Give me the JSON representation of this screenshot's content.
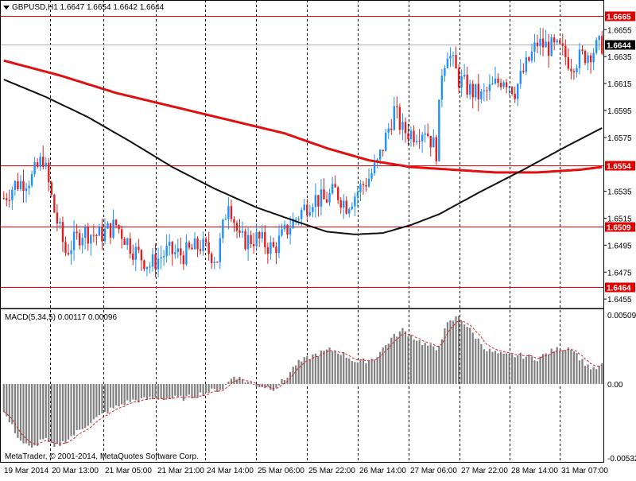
{
  "header": {
    "symbol": "GBPUSD,H1",
    "open": "1.6647",
    "high": "1.6654",
    "low": "1.6642",
    "close": "1.6644"
  },
  "indicator": {
    "label": "MACD(5,34,5) 0.00117 0.00096",
    "scale_top": "0.00509",
    "scale_mid": "0.00",
    "scale_bottom": "-0.00532"
  },
  "copyright": "MetaTrader, © 2001-2014, MetaQuotes Software Corp.",
  "colors": {
    "bull": "#1e90ff",
    "bear": "#e02020",
    "ma_red": "#e01010",
    "ma_black": "#111111",
    "level_line": "#e00000",
    "histogram": "#808080",
    "signal": "#e02020"
  },
  "chart_data": {
    "type": "candlestick",
    "symbol": "GBPUSD",
    "timeframe": "H1",
    "price_axis_ticks": [
      "1.6655",
      "1.6635",
      "1.6615",
      "1.6595",
      "1.6575",
      "1.6535",
      "1.6515",
      "1.6495",
      "1.6475",
      "1.6455"
    ],
    "time_axis_labels": [
      "19 Mar 2014",
      "20 Mar 13:00",
      "21 Mar 05:00",
      "21 Mar 21:00",
      "24 Mar 14:00",
      "25 Mar 06:00",
      "25 Mar 22:00",
      "26 Mar 14:00",
      "27 Mar 06:00",
      "27 Mar 22:00",
      "28 Mar 14:00",
      "31 Mar 07:00"
    ],
    "horizontal_levels": [
      {
        "value": 1.6665,
        "label": "1.6665"
      },
      {
        "value": 1.6554,
        "label": "1.6554"
      },
      {
        "value": 1.6509,
        "label": "1.6509"
      },
      {
        "value": 1.6464,
        "label": "1.6464"
      }
    ],
    "current_price": {
      "value": 1.6644,
      "label": "1.6644"
    },
    "price_range": [
      1.6448,
      1.6677
    ],
    "anchors": [
      [
        0,
        1.653
      ],
      [
        4,
        1.654
      ],
      [
        10,
        1.6545
      ],
      [
        14,
        1.656
      ],
      [
        18,
        1.652
      ],
      [
        22,
        1.649
      ],
      [
        28,
        1.6505
      ],
      [
        34,
        1.6502
      ],
      [
        40,
        1.651
      ],
      [
        46,
        1.6492
      ],
      [
        52,
        1.648
      ],
      [
        58,
        1.649
      ],
      [
        64,
        1.6488
      ],
      [
        70,
        1.6495
      ],
      [
        76,
        1.6485
      ],
      [
        80,
        1.653
      ],
      [
        84,
        1.6498
      ],
      [
        90,
        1.65
      ],
      [
        96,
        1.6492
      ],
      [
        102,
        1.651
      ],
      [
        106,
        1.652
      ],
      [
        110,
        1.653
      ],
      [
        114,
        1.6528
      ],
      [
        118,
        1.6535
      ],
      [
        122,
        1.6525
      ],
      [
        126,
        1.6535
      ],
      [
        130,
        1.6545
      ],
      [
        133,
        1.6555
      ],
      [
        136,
        1.6575
      ],
      [
        139,
        1.6595
      ],
      [
        142,
        1.658
      ],
      [
        146,
        1.6578
      ],
      [
        150,
        1.6582
      ],
      [
        154,
        1.6565
      ],
      [
        156,
        1.6625
      ],
      [
        158,
        1.664
      ],
      [
        162,
        1.6618
      ],
      [
        166,
        1.661
      ],
      [
        170,
        1.6605
      ],
      [
        174,
        1.6612
      ],
      [
        178,
        1.662
      ],
      [
        182,
        1.661
      ],
      [
        186,
        1.6628
      ],
      [
        190,
        1.6645
      ],
      [
        194,
        1.6642
      ],
      [
        198,
        1.664
      ],
      [
        202,
        1.663
      ],
      [
        206,
        1.6635
      ],
      [
        210,
        1.664
      ],
      [
        213,
        1.6644
      ]
    ],
    "moving_averages": [
      {
        "name": "",
        "color": "#e01010",
        "points": [
          [
            0,
            1.6632
          ],
          [
            20,
            1.6621
          ],
          [
            40,
            1.6608
          ],
          [
            60,
            1.6598
          ],
          [
            80,
            1.6588
          ],
          [
            100,
            1.6578
          ],
          [
            115,
            1.6567
          ],
          [
            130,
            1.6558
          ],
          [
            145,
            1.6553
          ],
          [
            160,
            1.6551
          ],
          [
            175,
            1.6549
          ],
          [
            190,
            1.6549
          ],
          [
            205,
            1.6551
          ],
          [
            213,
            1.6553
          ]
        ]
      },
      {
        "name": "",
        "color": "#111111",
        "points": [
          [
            0,
            1.6618
          ],
          [
            15,
            1.6605
          ],
          [
            30,
            1.659
          ],
          [
            45,
            1.6572
          ],
          [
            60,
            1.6553
          ],
          [
            75,
            1.6537
          ],
          [
            90,
            1.6523
          ],
          [
            105,
            1.6512
          ],
          [
            115,
            1.6505
          ],
          [
            125,
            1.6503
          ],
          [
            135,
            1.6504
          ],
          [
            145,
            1.651
          ],
          [
            155,
            1.6518
          ],
          [
            170,
            1.6535
          ],
          [
            185,
            1.6551
          ],
          [
            200,
            1.6568
          ],
          [
            213,
            1.6582
          ]
        ]
      }
    ],
    "macd": {
      "params": "5,34,5",
      "main": 0.00117,
      "signal": 0.00096,
      "range": [
        -0.00532,
        0.00509
      ],
      "hist_anchors": [
        [
          0,
          -0.002
        ],
        [
          6,
          -0.004
        ],
        [
          10,
          -0.0046
        ],
        [
          14,
          -0.0038
        ],
        [
          18,
          -0.0045
        ],
        [
          22,
          -0.004
        ],
        [
          30,
          -0.0028
        ],
        [
          38,
          -0.0018
        ],
        [
          45,
          -0.0012
        ],
        [
          55,
          -0.001
        ],
        [
          65,
          -0.001
        ],
        [
          72,
          -0.0006
        ],
        [
          78,
          -0.0003
        ],
        [
          82,
          0.0006
        ],
        [
          86,
          0.0002
        ],
        [
          90,
          -0.0001
        ],
        [
          96,
          -0.0003
        ],
        [
          100,
          0.0003
        ],
        [
          104,
          0.0014
        ],
        [
          110,
          0.002
        ],
        [
          116,
          0.0024
        ],
        [
          120,
          0.0022
        ],
        [
          126,
          0.0015
        ],
        [
          132,
          0.0018
        ],
        [
          138,
          0.0032
        ],
        [
          142,
          0.0038
        ],
        [
          148,
          0.003
        ],
        [
          154,
          0.0024
        ],
        [
          158,
          0.0042
        ],
        [
          162,
          0.0048
        ],
        [
          166,
          0.0038
        ],
        [
          172,
          0.0024
        ],
        [
          178,
          0.002
        ],
        [
          184,
          0.002
        ],
        [
          190,
          0.0018
        ],
        [
          196,
          0.0024
        ],
        [
          202,
          0.0026
        ],
        [
          206,
          0.0016
        ],
        [
          210,
          0.001
        ],
        [
          213,
          0.0013
        ]
      ]
    }
  }
}
